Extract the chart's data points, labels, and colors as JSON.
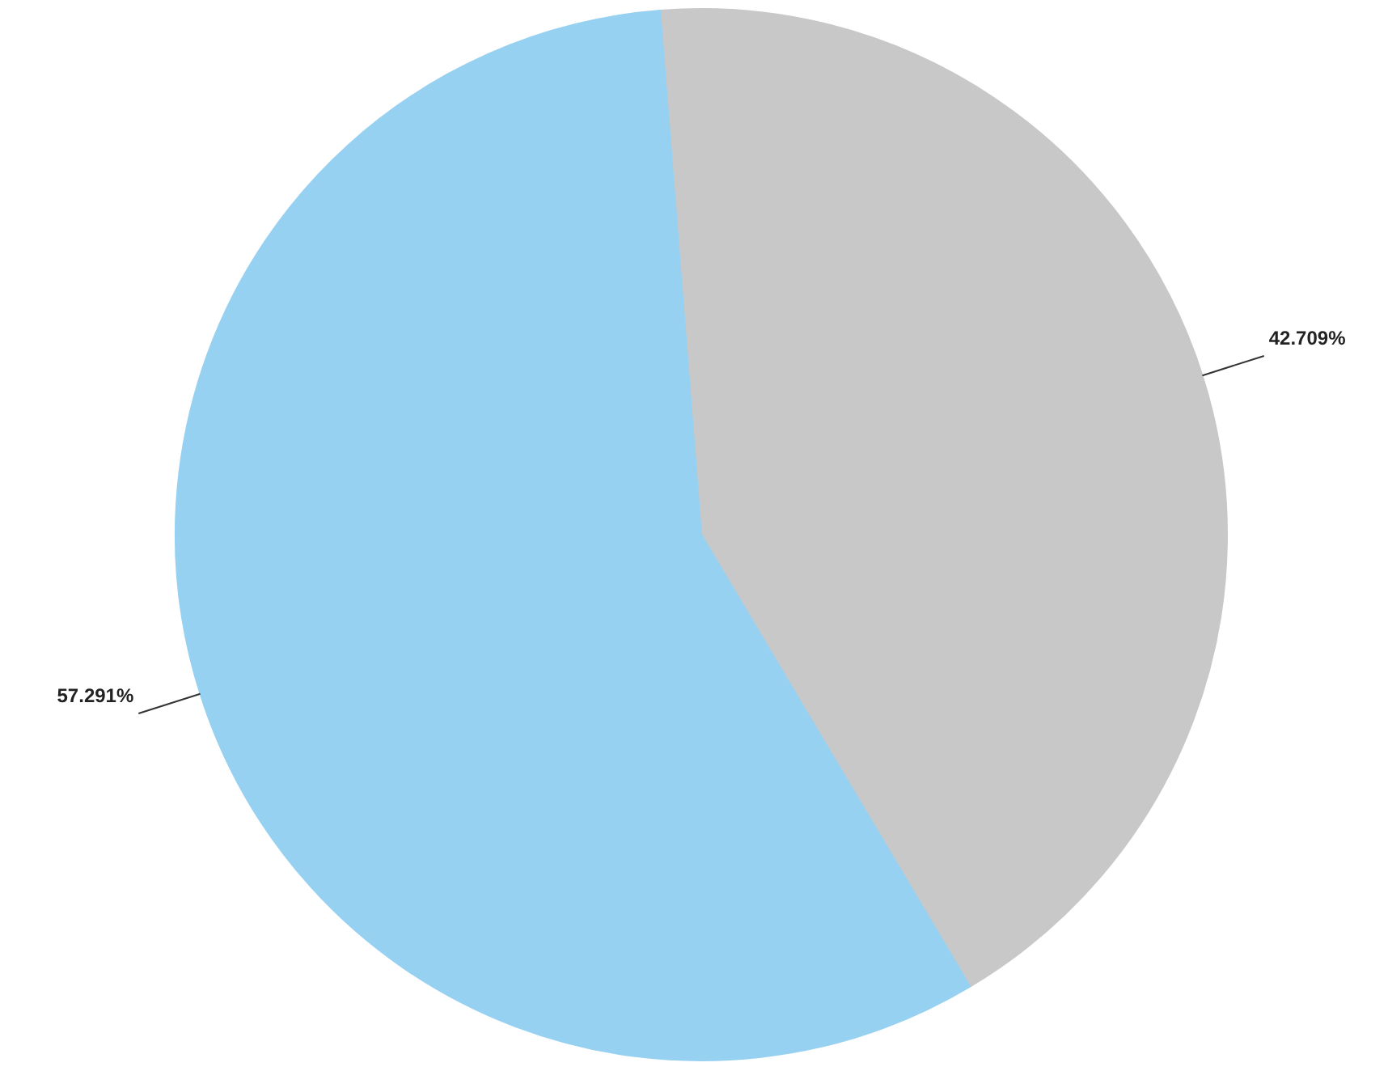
{
  "chart_data": {
    "type": "pie",
    "categories": [
      null,
      null
    ],
    "values": [
      42.709,
      57.291
    ],
    "colors": [
      "#c8c8c8",
      "#97d1f1"
    ],
    "value_labels": [
      "42.709%",
      "57.291%"
    ]
  }
}
